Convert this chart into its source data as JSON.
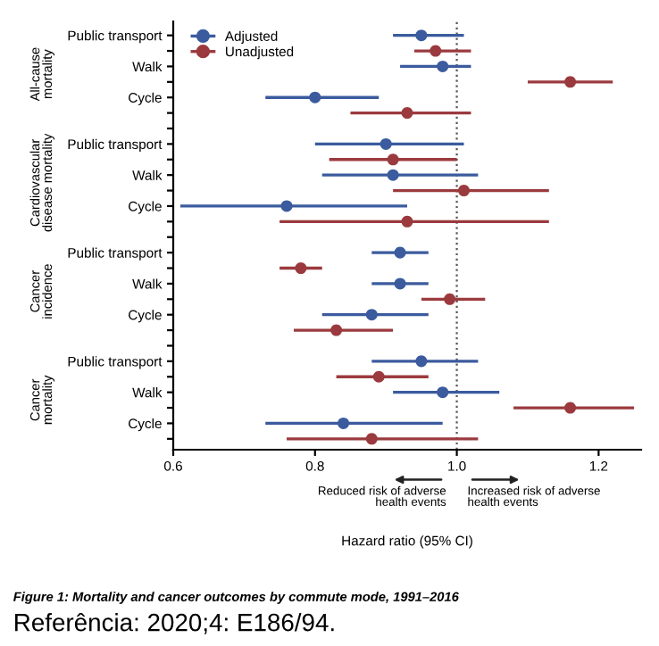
{
  "chart_data": {
    "type": "scatter",
    "orientation": "horizontal",
    "xlabel": "Hazard ratio (95% CI)",
    "categories": [
      "Public transport",
      null,
      "Walk",
      null,
      "Cycle",
      null,
      null,
      "Public transport",
      null,
      "Walk",
      null,
      "Cycle",
      null,
      null,
      "Public transport",
      null,
      "Walk",
      null,
      "Cycle",
      null,
      null,
      "Public transport",
      null,
      "Walk",
      null,
      "Cycle",
      null
    ],
    "series": [
      {
        "name": "Adjusted",
        "color": "#3b5b9e",
        "values": [
          0.95,
          null,
          0.98,
          null,
          0.8,
          null,
          null,
          0.9,
          null,
          0.91,
          null,
          0.76,
          null,
          null,
          0.92,
          null,
          0.92,
          null,
          0.88,
          null,
          null,
          0.95,
          null,
          0.98,
          null,
          0.84,
          null
        ],
        "errors": [
          [
            0.91,
            1.01
          ],
          null,
          [
            0.92,
            1.02
          ],
          null,
          [
            0.73,
            0.89
          ],
          null,
          null,
          [
            0.8,
            1.01
          ],
          null,
          [
            0.81,
            1.03
          ],
          null,
          [
            0.61,
            0.93
          ],
          null,
          null,
          [
            0.88,
            0.96
          ],
          null,
          [
            0.88,
            0.96
          ],
          null,
          [
            0.81,
            0.96
          ],
          null,
          null,
          [
            0.88,
            1.03
          ],
          null,
          [
            0.91,
            1.06
          ],
          null,
          [
            0.73,
            0.98
          ],
          null
        ]
      },
      {
        "name": "Unadjusted",
        "color": "#9b3a3e",
        "values": [
          null,
          0.97,
          null,
          1.16,
          null,
          0.93,
          null,
          null,
          0.91,
          null,
          1.01,
          null,
          0.93,
          null,
          null,
          0.78,
          null,
          0.99,
          null,
          0.83,
          null,
          null,
          0.89,
          null,
          1.16,
          null,
          0.88
        ],
        "errors": [
          null,
          [
            0.94,
            1.02
          ],
          null,
          [
            1.1,
            1.22
          ],
          null,
          [
            0.85,
            1.02
          ],
          null,
          null,
          [
            0.82,
            1.0
          ],
          null,
          [
            0.91,
            1.13
          ],
          null,
          [
            0.75,
            1.13
          ],
          null,
          null,
          [
            0.75,
            0.81
          ],
          null,
          [
            0.95,
            1.04
          ],
          null,
          [
            0.77,
            0.91
          ],
          null,
          null,
          [
            0.83,
            0.96
          ],
          null,
          [
            1.08,
            1.25
          ],
          null,
          [
            0.76,
            1.03
          ]
        ]
      }
    ],
    "xlim": [
      0.6,
      1.26
    ],
    "xticks": [
      {
        "value": 0.6,
        "label": "0.6"
      },
      {
        "value": 0.8,
        "label": "0.8"
      },
      {
        "value": 1.0,
        "label": "1.0"
      },
      {
        "value": 1.2,
        "label": "1.2"
      }
    ],
    "ref_lines": [
      {
        "axis": "x",
        "value": 1.0,
        "line_style": "dotted",
        "color": "#555555"
      }
    ],
    "marker": "circle",
    "legend": "top left",
    "grid": false,
    "annotations": [
      "All-cause\nmortality",
      "Cardiovascular\ndisease mortality",
      "Cancer\nincidence",
      "Cancer\nmortality",
      "Reduced risk of adverse\nhealth events",
      "Increased risk of adverse\nhealth events",
      "Figure 1: Mortality and cancer outcomes by commute mode, 1991–2016",
      "Referência: 2020;4: E186/94."
    ]
  }
}
